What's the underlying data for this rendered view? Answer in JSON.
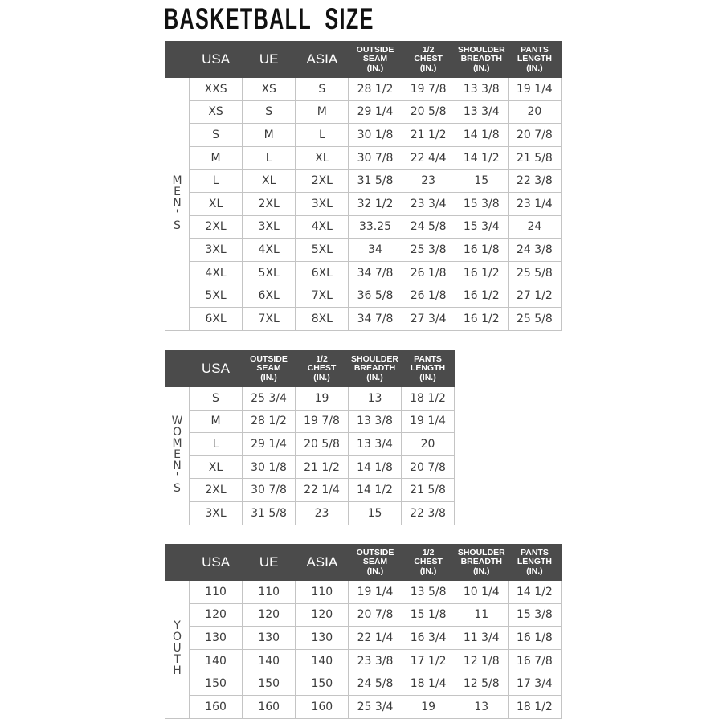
{
  "title": "BASKETBALL  SIZE",
  "colors": {
    "header_bg": "#4b4b4b",
    "header_text": "#ffffff",
    "grid": "#c4c4c4",
    "text": "#3c3c3c"
  },
  "tables": [
    {
      "group_label": "MEN'S",
      "headers": [
        "USA",
        "UE",
        "ASIA",
        "OUTSIDE\nSEAM\n(IN.)",
        "1/2\nCHEST\n(IN.)",
        "SHOULDER\nBREADTH\n(IN.)",
        "PANTS\nLENGTH\n(IN.)"
      ],
      "rows": [
        [
          "XXS",
          "XS",
          "S",
          "28 1/2",
          "19 7/8",
          "13 3/8",
          "19 1/4"
        ],
        [
          "XS",
          "S",
          "M",
          "29 1/4",
          "20 5/8",
          "13 3/4",
          "20"
        ],
        [
          "S",
          "M",
          "L",
          "30 1/8",
          "21 1/2",
          "14 1/8",
          "20 7/8"
        ],
        [
          "M",
          "L",
          "XL",
          "30 7/8",
          "22 4/4",
          "14 1/2",
          "21 5/8"
        ],
        [
          "L",
          "XL",
          "2XL",
          "31 5/8",
          "23",
          "15",
          "22 3/8"
        ],
        [
          "XL",
          "2XL",
          "3XL",
          "32 1/2",
          "23 3/4",
          "15 3/8",
          "23 1/4"
        ],
        [
          "2XL",
          "3XL",
          "4XL",
          "33.25",
          "24 5/8",
          "15 3/4",
          "24"
        ],
        [
          "3XL",
          "4XL",
          "5XL",
          "34",
          "25 3/8",
          "16 1/8",
          "24 3/8"
        ],
        [
          "4XL",
          "5XL",
          "6XL",
          "34 7/8",
          "26 1/8",
          "16 1/2",
          "25 5/8"
        ],
        [
          "5XL",
          "6XL",
          "7XL",
          "36 5/8",
          "26 1/8",
          "16 1/2",
          "27 1/2"
        ],
        [
          "6XL",
          "7XL",
          "8XL",
          "34 7/8",
          "27 3/4",
          "16 1/2",
          "25 5/8"
        ]
      ]
    },
    {
      "group_label": "WOMEN'S",
      "headers": [
        "USA",
        "OUTSIDE\nSEAM\n(IN.)",
        "1/2\nCHEST\n(IN.)",
        "SHOULDER\nBREADTH\n(IN.)",
        "PANTS\nLENGTH\n(IN.)"
      ],
      "rows": [
        [
          "S",
          "25 3/4",
          "19",
          "13",
          "18 1/2"
        ],
        [
          "M",
          "28 1/2",
          "19 7/8",
          "13 3/8",
          "19 1/4"
        ],
        [
          "L",
          "29 1/4",
          "20 5/8",
          "13 3/4",
          "20"
        ],
        [
          "XL",
          "30 1/8",
          "21 1/2",
          "14 1/8",
          "20 7/8"
        ],
        [
          "2XL",
          "30 7/8",
          "22 1/4",
          "14 1/2",
          "21 5/8"
        ],
        [
          "3XL",
          "31 5/8",
          "23",
          "15",
          "22 3/8"
        ]
      ]
    },
    {
      "group_label": "YOUTH",
      "headers": [
        "USA",
        "UE",
        "ASIA",
        "OUTSIDE\nSEAM\n(IN.)",
        "1/2\nCHEST\n(IN.)",
        "SHOULDER\nBREADTH\n(IN.)",
        "PANTS\nLENGTH\n(IN.)"
      ],
      "rows": [
        [
          "110",
          "110",
          "110",
          "19 1/4",
          "13 5/8",
          "10 1/4",
          "14 1/2"
        ],
        [
          "120",
          "120",
          "120",
          "20 7/8",
          "15 1/8",
          "11",
          "15 3/8"
        ],
        [
          "130",
          "130",
          "130",
          "22 1/4",
          "16 3/4",
          "11 3/4",
          "16 1/8"
        ],
        [
          "140",
          "140",
          "140",
          "23 3/8",
          "17 1/2",
          "12 1/8",
          "16 7/8"
        ],
        [
          "150",
          "150",
          "150",
          "24 5/8",
          "18 1/4",
          "12 5/8",
          "17 3/4"
        ],
        [
          "160",
          "160",
          "160",
          "25 3/4",
          "19",
          "13",
          "18 1/2"
        ]
      ]
    }
  ]
}
